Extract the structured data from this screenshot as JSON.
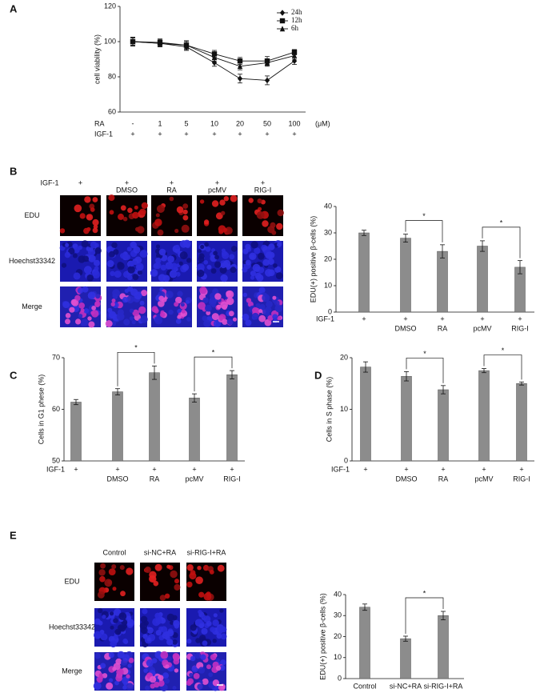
{
  "panels": {
    "labels": [
      "A",
      "B",
      "C",
      "D",
      "E"
    ]
  },
  "images_b": {
    "igf_name": "IGF-1",
    "igf": [
      "+",
      "+",
      "+",
      "+",
      "+"
    ],
    "treatments": [
      null,
      "DMSO",
      "RA",
      "pcMV",
      "RIG-I"
    ],
    "rows": [
      "EDU",
      "Hoechst33342",
      "Merge"
    ]
  },
  "images_e": {
    "columns": [
      "Control",
      "si-NC+RA",
      "si-RIG-I+RA"
    ],
    "rows": [
      "EDU",
      "Hoechst33342",
      "Merge"
    ]
  },
  "chart_data": [
    {
      "type": "line",
      "y_label": "cell viability (%)",
      "category_axis_name": "RA",
      "x_unit": "(μM)",
      "categories": [
        "-",
        "1",
        "5",
        "10",
        "20",
        "50",
        "100"
      ],
      "x_rows": [
        {
          "name": "IGF-1",
          "labels": [
            "+",
            "+",
            "+",
            "+",
            "+",
            "+",
            "+"
          ]
        }
      ],
      "ylim": [
        60,
        120
      ],
      "yticks": [
        60,
        80,
        100,
        120
      ],
      "legend": "top-right",
      "series": [
        {
          "name": "24h",
          "marker": "diamond",
          "color": "#111111",
          "values": [
            100,
            99,
            97,
            88,
            79,
            78,
            89
          ],
          "errors": [
            2.5,
            2,
            2,
            2,
            2.5,
            2.5,
            2
          ]
        },
        {
          "name": "12h",
          "marker": "square",
          "color": "#111111",
          "values": [
            100,
            99.5,
            98,
            93,
            89,
            89,
            94
          ],
          "errors": [
            2.5,
            2,
            2.5,
            2,
            2,
            2.5,
            1.5
          ]
        },
        {
          "name": "6h",
          "marker": "triangle",
          "color": "#111111",
          "values": [
            100,
            99,
            98,
            91,
            86,
            88,
            92
          ],
          "errors": [
            2,
            2,
            2,
            2,
            2,
            2,
            2
          ]
        }
      ]
    },
    {
      "type": "bar",
      "y_label": "EDU(+) positive β-cells (%)",
      "color": "#8c8c8c",
      "categories": [
        null,
        "DMSO",
        "RA",
        "pcMV",
        "RIG-I"
      ],
      "x_rows": [
        {
          "name": "IGF-1",
          "labels": [
            "+",
            "+",
            "+",
            "+",
            "+"
          ]
        }
      ],
      "values": [
        30,
        28,
        23,
        25,
        17
      ],
      "errors": [
        1,
        1.5,
        2.5,
        2,
        2.5
      ],
      "ylim": [
        0,
        40
      ],
      "yticks": [
        0,
        10,
        20,
        30,
        40
      ],
      "brackets": [
        {
          "from": 1,
          "to": 2,
          "label": "*"
        },
        {
          "from": 3,
          "to": 4,
          "label": "*"
        }
      ]
    },
    {
      "type": "bar",
      "y_label": "Cells in G1 phese (%)",
      "color": "#8c8c8c",
      "categories": [
        null,
        "DMSO",
        "RA",
        "pcMV",
        "RIG-I"
      ],
      "x_rows": [
        {
          "name": "IGF-1",
          "labels": [
            "+",
            "+",
            "+",
            "+",
            "+"
          ]
        }
      ],
      "values": [
        61.4,
        63.4,
        67.1,
        62.2,
        66.7
      ],
      "errors": [
        0.5,
        0.6,
        1.3,
        0.8,
        0.8
      ],
      "ylim": [
        50,
        70
      ],
      "yticks": [
        50,
        60,
        70
      ],
      "brackets": [
        {
          "from": 1,
          "to": 2,
          "label": "*"
        },
        {
          "from": 3,
          "to": 4,
          "label": "*"
        }
      ]
    },
    {
      "type": "bar",
      "y_label": "Cells in S phase (%)",
      "color": "#8c8c8c",
      "categories": [
        null,
        "DMSO",
        "RA",
        "pcMV",
        "RIG-I"
      ],
      "x_rows": [
        {
          "name": "IGF-1",
          "labels": [
            "+",
            "+",
            "+",
            "+",
            "+"
          ]
        }
      ],
      "values": [
        18.2,
        16.4,
        13.8,
        17.5,
        15
      ],
      "errors": [
        1,
        0.9,
        0.8,
        0.4,
        0.3
      ],
      "ylim": [
        0,
        20
      ],
      "yticks": [
        0,
        10,
        20
      ],
      "brackets": [
        {
          "from": 1,
          "to": 2,
          "label": "*"
        },
        {
          "from": 3,
          "to": 4,
          "label": "*"
        }
      ]
    },
    {
      "type": "bar",
      "y_label": "EDU(+) positive β-cells (%)",
      "color": "#8c8c8c",
      "categories": [
        "Control",
        "si-NC+RA",
        "si-RIG-I+RA"
      ],
      "values": [
        34,
        19,
        30
      ],
      "errors": [
        1.5,
        1.2,
        2
      ],
      "ylim": [
        0,
        40
      ],
      "yticks": [
        0,
        10,
        20,
        30,
        40
      ],
      "brackets": [
        {
          "from": 1,
          "to": 2,
          "label": "*"
        }
      ]
    }
  ]
}
